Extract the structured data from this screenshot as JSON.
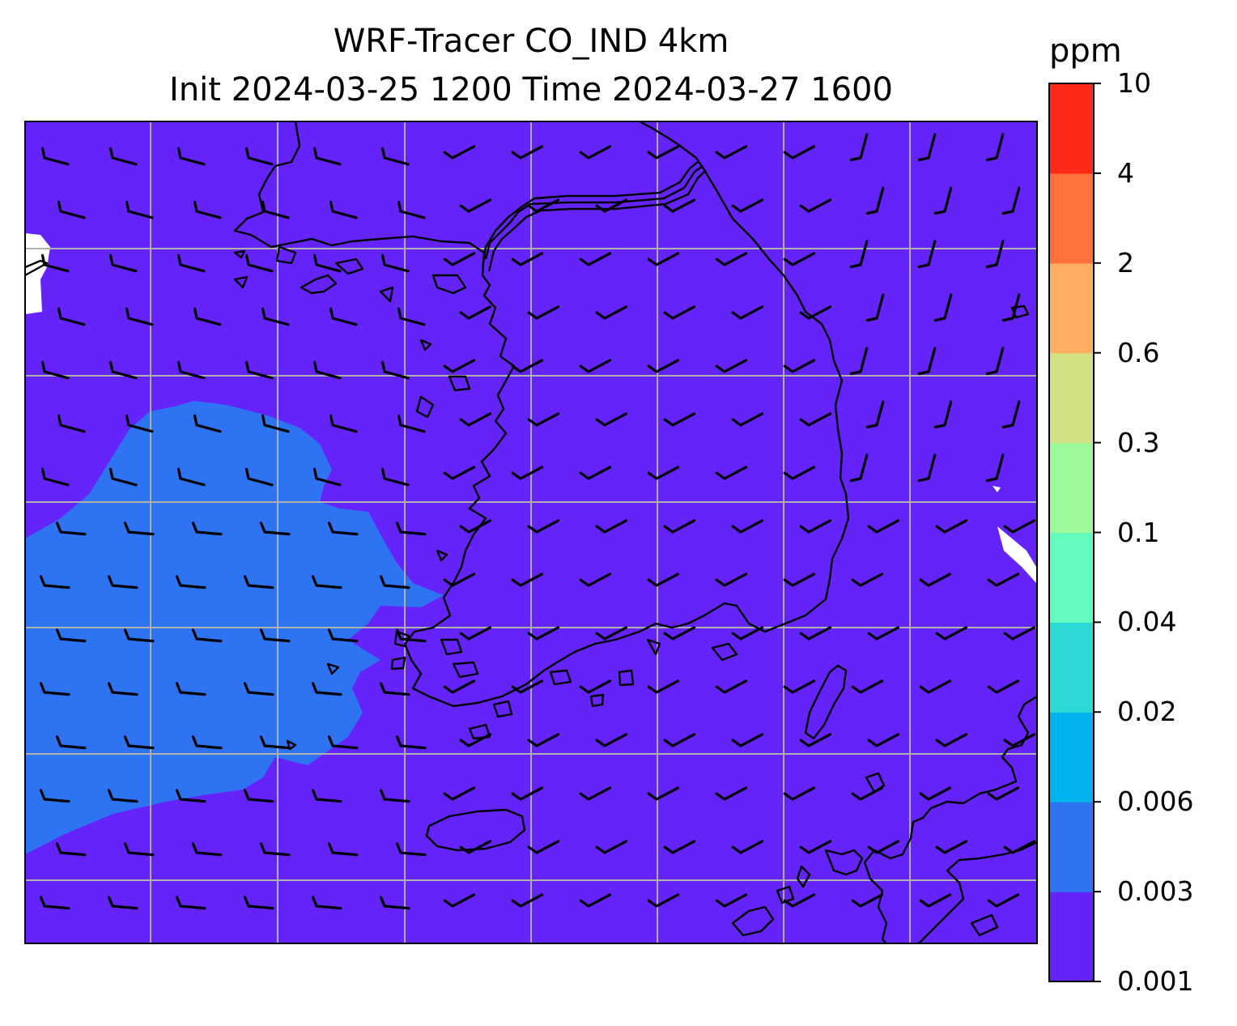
{
  "title": {
    "line1": "WRF-Tracer CO_IND 4km",
    "line2": "Init 2024-03-25 1200 Time 2024-03-27 1600"
  },
  "colorbar": {
    "unit": "ppm",
    "levels": [
      "0.001",
      "0.003",
      "0.006",
      "0.02",
      "0.04",
      "0.1",
      "0.3",
      "0.6",
      "2",
      "4",
      "10"
    ],
    "colors": [
      "#6424f9",
      "#2e73f2",
      "#00b2ed",
      "#2cd9d5",
      "#64fbbf",
      "#9dfa9b",
      "#d2e183",
      "#feae60",
      "#fe703c",
      "#ff2918"
    ]
  },
  "map": {
    "background_color": "#6424f9",
    "plume_color": "#2e73f2",
    "gridline_color": "#b0b0b0",
    "coastline_color": "#000000",
    "wind_barb_color": "#000000"
  }
}
